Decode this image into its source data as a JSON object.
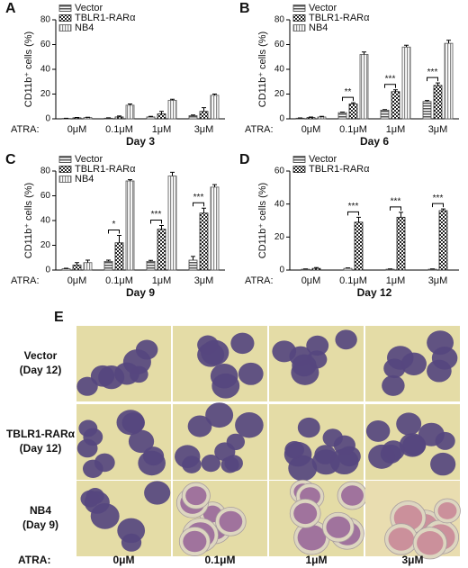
{
  "chart_data": [
    {
      "type": "bar",
      "panel": "A",
      "ylabel": "CD11b⁺ cells (%)",
      "xlabel_prefix": "ATRA:",
      "xlabel": "Day 3",
      "categories": [
        "0μM",
        "0.1μM",
        "1μM",
        "3μM"
      ],
      "ylim": [
        0,
        80
      ],
      "yticks": [
        0,
        20,
        40,
        60,
        80
      ],
      "series": [
        {
          "name": "Vector",
          "color": "#444444",
          "pattern": "horizontal-stripes",
          "values": [
            0.3,
            0.5,
            1.5,
            2.5
          ],
          "errors": [
            0.2,
            0.3,
            0.5,
            0.6
          ]
        },
        {
          "name": "TBLR1-RARα",
          "color": "#222222",
          "pattern": "checks",
          "values": [
            0.8,
            1.5,
            4,
            6
          ],
          "errors": [
            0.3,
            0.8,
            2,
            3
          ]
        },
        {
          "name": "NB4",
          "color": "#555555",
          "pattern": "vertical-stripes",
          "values": [
            1,
            11,
            15,
            19
          ],
          "errors": [
            0.3,
            1,
            0.8,
            1
          ]
        }
      ]
    },
    {
      "type": "bar",
      "panel": "B",
      "ylabel": "CD11b⁺ cells (%)",
      "xlabel_prefix": "ATRA:",
      "xlabel": "Day 6",
      "categories": [
        "0μM",
        "0.1μM",
        "1μM",
        "3μM"
      ],
      "ylim": [
        0,
        80
      ],
      "yticks": [
        0,
        20,
        40,
        60,
        80
      ],
      "significance": [
        null,
        "**",
        "***",
        "***"
      ],
      "series": [
        {
          "name": "Vector",
          "color": "#444444",
          "pattern": "horizontal-stripes",
          "values": [
            0.5,
            5,
            7,
            14
          ],
          "errors": [
            0.2,
            0.5,
            0.5,
            0.8
          ]
        },
        {
          "name": "TBLR1-RARα",
          "color": "#222222",
          "pattern": "checks",
          "values": [
            1,
            12,
            22,
            27
          ],
          "errors": [
            0.5,
            1,
            1.5,
            2
          ]
        },
        {
          "name": "NB4",
          "color": "#555555",
          "pattern": "vertical-stripes",
          "values": [
            1.5,
            52,
            58,
            61
          ],
          "errors": [
            0.5,
            2,
            1.5,
            2.5
          ]
        }
      ]
    },
    {
      "type": "bar",
      "panel": "C",
      "ylabel": "CD11b⁺ cells (%)",
      "xlabel_prefix": "ATRA:",
      "xlabel": "Day 9",
      "categories": [
        "0μM",
        "0.1μM",
        "1μM",
        "3μM"
      ],
      "ylim": [
        0,
        80
      ],
      "yticks": [
        0,
        20,
        40,
        60,
        80
      ],
      "significance": [
        null,
        "*",
        "***",
        "***"
      ],
      "series": [
        {
          "name": "Vector",
          "color": "#444444",
          "pattern": "horizontal-stripes",
          "values": [
            1,
            7,
            7,
            8
          ],
          "errors": [
            0.5,
            1,
            0.8,
            3
          ]
        },
        {
          "name": "TBLR1-RARα",
          "color": "#222222",
          "pattern": "checks",
          "values": [
            4,
            22,
            33,
            46
          ],
          "errors": [
            2,
            6,
            3,
            4
          ]
        },
        {
          "name": "NB4",
          "color": "#555555",
          "pattern": "vertical-stripes",
          "values": [
            6,
            72,
            76,
            67
          ],
          "errors": [
            2,
            1,
            3,
            2
          ]
        }
      ]
    },
    {
      "type": "bar",
      "panel": "D",
      "ylabel": "CD11b⁺ cells (%)",
      "xlabel_prefix": "ATRA:",
      "xlabel": "Day 12",
      "categories": [
        "0μM",
        "0.1μM",
        "1μM",
        "3μM"
      ],
      "ylim": [
        0,
        60
      ],
      "yticks": [
        0,
        20,
        40,
        60
      ],
      "significance": [
        null,
        "***",
        "***",
        "***"
      ],
      "series": [
        {
          "name": "Vector",
          "color": "#444444",
          "pattern": "horizontal-stripes",
          "values": [
            0.5,
            1,
            0.5,
            0.5
          ],
          "errors": [
            0.2,
            0.3,
            0.2,
            0.2
          ]
        },
        {
          "name": "TBLR1-RARα",
          "color": "#222222",
          "pattern": "checks",
          "values": [
            1,
            29,
            32,
            36
          ],
          "errors": [
            0.5,
            3,
            3,
            1
          ]
        }
      ]
    }
  ],
  "micrographs": {
    "panel": "E",
    "rows": [
      {
        "name": "Vector",
        "day": "(Day 12)"
      },
      {
        "name": "TBLR1-RARα",
        "day": "(Day 12)"
      },
      {
        "name": "NB4",
        "day": "(Day 9)"
      }
    ],
    "columns_prefix": "ATRA:",
    "columns": [
      "0μM",
      "0.1μM",
      "1μM",
      "3μM"
    ]
  }
}
